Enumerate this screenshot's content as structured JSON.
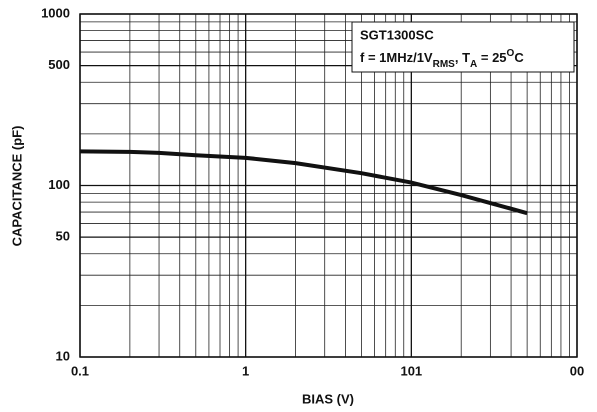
{
  "chart_data": {
    "type": "line",
    "x_label": "BIAS (V)",
    "y_label": "CAPACITANCE (pF)",
    "annotation": {
      "title": "SGT1300SC",
      "parts": [
        "f = 1MHz/1V",
        "RMS",
        ", T",
        "A",
        " = 25",
        "O",
        "C"
      ]
    },
    "x": [
      0.1,
      0.2,
      0.3,
      0.5,
      1,
      2,
      5,
      10,
      20,
      50
    ],
    "series": [
      {
        "name": "SGT1300SC",
        "color": "#111111",
        "values": [
          158,
          157,
          155,
          150,
          145,
          135,
          118,
          104,
          88,
          69
        ]
      }
    ],
    "xlim": [
      0.1,
      100
    ],
    "ylim": [
      10,
      1000
    ],
    "xticks": [
      0.1,
      1,
      {
        "value": 10,
        "label": "101"
      },
      {
        "value": 100,
        "label": "00"
      }
    ],
    "yticks": [
      10,
      50,
      100,
      500,
      1000
    ],
    "xscale": "log",
    "yscale": "log",
    "grid": true
  }
}
